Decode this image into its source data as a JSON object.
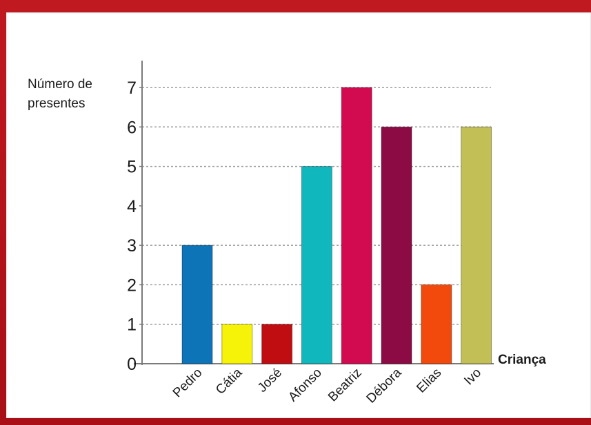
{
  "chart_data": {
    "type": "bar",
    "title": "",
    "ylabel_lines": [
      "Número de",
      "presentes"
    ],
    "xlabel": "Criança",
    "ylim": [
      0,
      7
    ],
    "yticks": [
      0,
      1,
      2,
      3,
      4,
      5,
      6,
      7
    ],
    "grid": "dashed lines at values 1, 2, 3, 5, 6, 7",
    "categories": [
      "Pedro",
      "Cátia",
      "José",
      "Afonso",
      "Beatriz",
      "Débora",
      "Elias",
      "Ivo"
    ],
    "values": [
      3,
      1,
      1,
      5,
      7,
      6,
      2,
      6
    ],
    "colors": [
      "#0e74b8",
      "#f6f208",
      "#c00d12",
      "#10b7bd",
      "#d20a4f",
      "#8c0b45",
      "#f24a0c",
      "#c2bf57"
    ]
  }
}
